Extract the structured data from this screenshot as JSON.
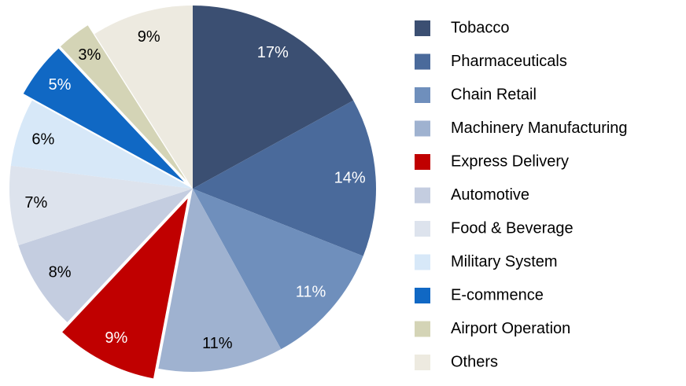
{
  "chart_data": {
    "type": "pie",
    "categories": [
      "Tobacco",
      "Pharmaceuticals",
      "Chain Retail",
      "Machinery Manufacturing",
      "Express Delivery",
      "Automotive",
      "Food & Beverage",
      "Military System",
      "E-commence",
      "Airport Operation",
      "Others"
    ],
    "values": [
      17,
      14,
      11,
      11,
      9,
      8,
      7,
      6,
      5,
      3,
      9
    ],
    "value_labels": [
      "17%",
      "14%",
      "11%",
      "11%",
      "9%",
      "8%",
      "7%",
      "6%",
      "5%",
      "3%",
      "9%"
    ],
    "colors": [
      "#3b4f72",
      "#4a6a9b",
      "#6f8fbc",
      "#9fb2d0",
      "#c00000",
      "#c4cde0",
      "#dde3ed",
      "#d7e8f8",
      "#1068c4",
      "#d4d4b6",
      "#edeae0"
    ],
    "exploded": [
      4,
      8,
      9
    ],
    "legend": "right"
  }
}
